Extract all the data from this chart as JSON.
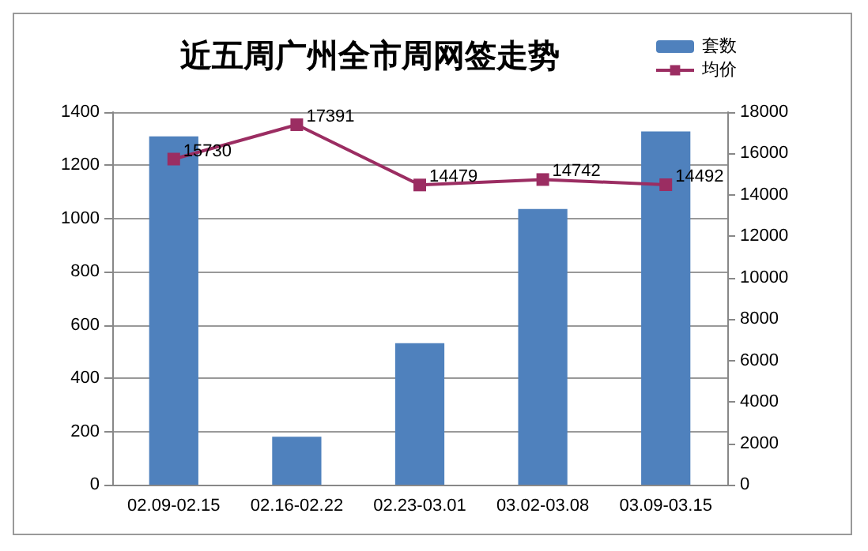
{
  "chart_data": {
    "type": "bar",
    "title": "近五周广州全市周网签走势",
    "categories": [
      "02.09-02.15",
      "02.16-02.22",
      "02.23-03.01",
      "03.02-03.08",
      "03.09-03.15"
    ],
    "series": [
      {
        "name": "套数",
        "color": "#4f81bd",
        "values": [
          1309,
          180,
          532,
          1036,
          1327
        ]
      },
      {
        "name": "均价",
        "type": "line",
        "axis": "y2",
        "color": "#9b2d62",
        "marker": "square",
        "data_labels": true,
        "values": [
          15730,
          17391,
          14479,
          14742,
          14492
        ]
      }
    ],
    "ylim": [
      0,
      1400
    ],
    "yticks": [
      0,
      200,
      400,
      600,
      800,
      1000,
      1200,
      1400
    ],
    "y2lim": [
      0,
      18000
    ],
    "y2ticks": [
      0,
      2000,
      4000,
      6000,
      8000,
      10000,
      12000,
      14000,
      16000,
      18000
    ],
    "grid": "y",
    "legend": "top right"
  }
}
